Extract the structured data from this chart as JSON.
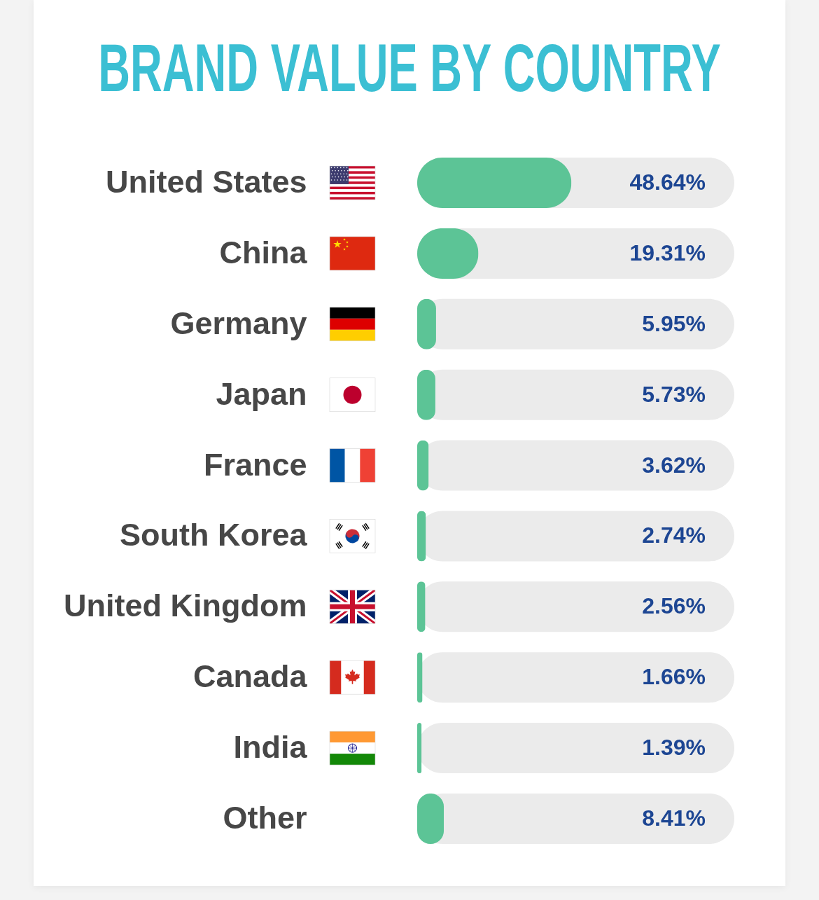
{
  "chart_data": {
    "type": "bar",
    "title": "BRAND VALUE BY COUNTRY",
    "orientation": "horizontal",
    "categories": [
      "United States",
      "China",
      "Germany",
      "Japan",
      "France",
      "South Korea",
      "United Kingdom",
      "Canada",
      "India",
      "Other"
    ],
    "values": [
      48.64,
      19.31,
      5.95,
      5.73,
      3.62,
      2.74,
      2.56,
      1.66,
      1.39,
      8.41
    ],
    "value_labels": [
      "48.64%",
      "19.31%",
      "5.95%",
      "5.73%",
      "3.62%",
      "2.74%",
      "2.56%",
      "1.66%",
      "1.39%",
      "8.41%"
    ],
    "color": "#5cc496",
    "xlim": [
      0,
      100
    ],
    "tick_labels": "y"
  }
}
